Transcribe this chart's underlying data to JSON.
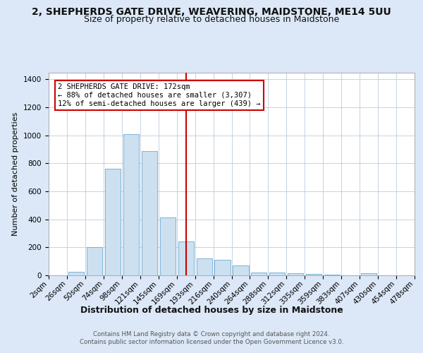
{
  "title": "2, SHEPHERDS GATE DRIVE, WEAVERING, MAIDSTONE, ME14 5UU",
  "subtitle": "Size of property relative to detached houses in Maidstone",
  "xlabel": "Distribution of detached houses by size in Maidstone",
  "ylabel": "Number of detached properties",
  "footer_line1": "Contains HM Land Registry data © Crown copyright and database right 2024.",
  "footer_line2": "Contains public sector information licensed under the Open Government Licence v3.0.",
  "bins": [
    "2sqm",
    "26sqm",
    "50sqm",
    "74sqm",
    "98sqm",
    "121sqm",
    "145sqm",
    "169sqm",
    "193sqm",
    "216sqm",
    "240sqm",
    "264sqm",
    "288sqm",
    "312sqm",
    "335sqm",
    "359sqm",
    "383sqm",
    "407sqm",
    "430sqm",
    "454sqm",
    "478sqm"
  ],
  "values": [
    0,
    25,
    200,
    760,
    1010,
    890,
    415,
    240,
    120,
    110,
    70,
    20,
    20,
    15,
    10,
    5,
    0,
    15,
    0,
    0,
    0
  ],
  "bar_color": "#cce0f0",
  "bar_edge_color": "#6aaad4",
  "vline_color": "#cc0000",
  "annotation_text": "2 SHEPHERDS GATE DRIVE: 172sqm\n← 88% of detached houses are smaller (3,307)\n12% of semi-detached houses are larger (439) →",
  "annotation_box_color": "#ffffff",
  "annotation_box_edge": "#cc0000",
  "ylim": [
    0,
    1450
  ],
  "yticks": [
    0,
    200,
    400,
    600,
    800,
    1000,
    1200,
    1400
  ],
  "bg_color": "#dce8f8",
  "plot_bg_color": "#ffffff",
  "title_fontsize": 10,
  "subtitle_fontsize": 9,
  "axis_label_fontsize": 9,
  "tick_fontsize": 7.5,
  "ylabel_fontsize": 8
}
